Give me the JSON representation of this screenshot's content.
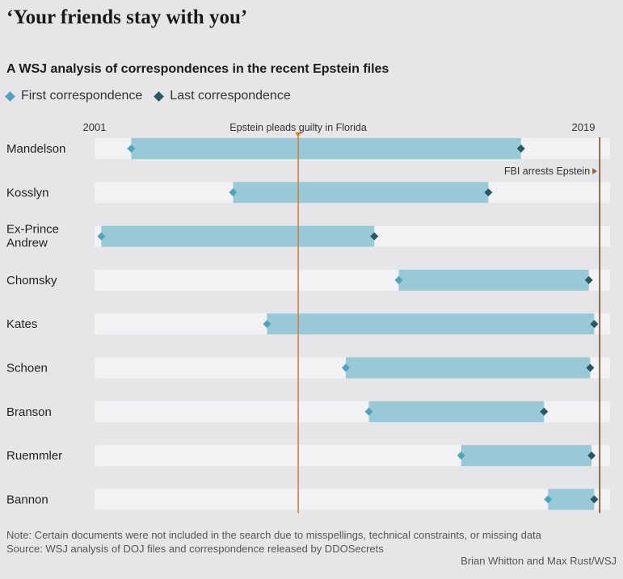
{
  "headline": "‘Your friends stay with you’",
  "subtitle": "A WSJ analysis of correspondences in the recent Epstein files",
  "legend": {
    "first": {
      "label": "First correspondence",
      "color": "#4ea3bd"
    },
    "last": {
      "label": "Last correspondence",
      "color": "#265866"
    }
  },
  "chart_data": {
    "type": "range-bar",
    "xlim": [
      2001,
      2019
    ],
    "tick_labels": [
      {
        "value": 2001,
        "label": "2001"
      },
      {
        "value": 2019,
        "label": "2019"
      }
    ],
    "annotations": [
      {
        "x": 2008.5,
        "label": "Epstein pleads guilty in Florida",
        "color": "#d38431"
      },
      {
        "x": 2019.6,
        "label": "FBI arrests Epstein",
        "color": "#7a4a2a"
      }
    ],
    "bar_color": "#99c8d6",
    "track_color": "#f2f2f4",
    "rows": [
      {
        "name": "Mandelson",
        "first": 2002.35,
        "last": 2016.7
      },
      {
        "name": "Kosslyn",
        "first": 2006.1,
        "last": 2015.5
      },
      {
        "name": "Ex-Prince\nAndrew",
        "first": 2001.25,
        "last": 2011.3
      },
      {
        "name": "Chomsky",
        "first": 2012.2,
        "last": 2019.2
      },
      {
        "name": "Kates",
        "first": 2007.35,
        "last": 2019.4
      },
      {
        "name": "Schoen",
        "first": 2010.25,
        "last": 2019.25
      },
      {
        "name": "Branson",
        "first": 2011.1,
        "last": 2017.55
      },
      {
        "name": "Ruemmler",
        "first": 2014.5,
        "last": 2019.3
      },
      {
        "name": "Bannon",
        "first": 2017.7,
        "last": 2019.4
      }
    ]
  },
  "footnotes": {
    "note": "Note: Certain documents were not included in the search due to misspellings, technical constraints, or missing data",
    "source": "Source: WSJ analysis of DOJ files and correspondence released by DDOSecrets"
  },
  "credit": "Brian Whitton and Max Rust/WSJ"
}
